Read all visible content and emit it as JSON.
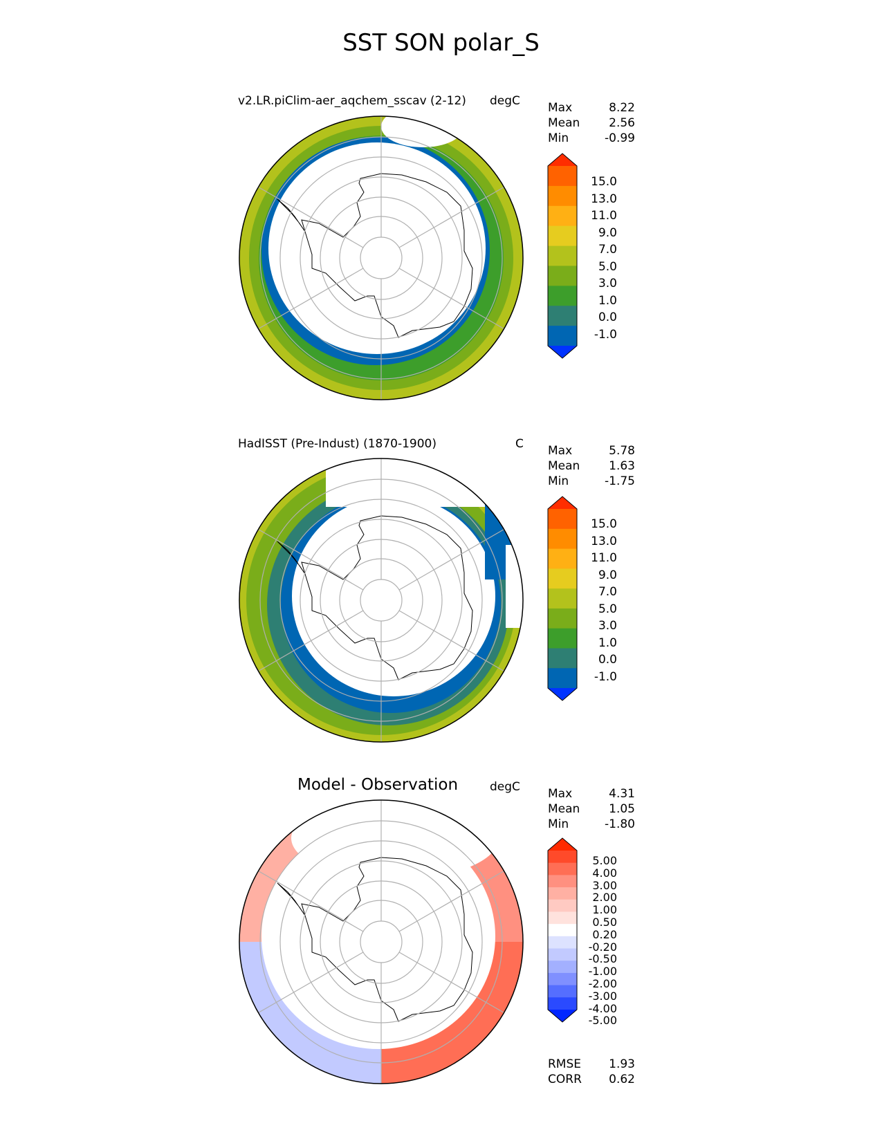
{
  "title": "SST SON polar_S",
  "panels": [
    {
      "id": "model",
      "title": "v2.LR.piClim-aer_aqchem_sscav (2-12)",
      "units": "degC",
      "stats": [
        {
          "label": "Max",
          "value": "8.22"
        },
        {
          "label": "Mean",
          "value": "2.56"
        },
        {
          "label": "Min",
          "value": "-0.99"
        }
      ],
      "colorbar": {
        "labels": [
          "15.0",
          "13.0",
          "11.0",
          "9.0",
          "7.0",
          "5.0",
          "3.0",
          "1.0",
          "0.0",
          "-1.0"
        ],
        "colors": [
          "#ff2d00",
          "#ff6200",
          "#ff8c00",
          "#ffb014",
          "#e6cc1f",
          "#b3c21c",
          "#7aad1a",
          "#3d9e2b",
          "#2e7f73",
          "#0066b3",
          "#0033ff"
        ]
      }
    },
    {
      "id": "obs",
      "title": "HadISST (Pre-Indust) (1870-1900)",
      "units": "C",
      "stats": [
        {
          "label": "Max",
          "value": "5.78"
        },
        {
          "label": "Mean",
          "value": "1.63"
        },
        {
          "label": "Min",
          "value": "-1.75"
        }
      ],
      "colorbar": {
        "labels": [
          "15.0",
          "13.0",
          "11.0",
          "9.0",
          "7.0",
          "5.0",
          "3.0",
          "1.0",
          "0.0",
          "-1.0"
        ],
        "colors": [
          "#ff2d00",
          "#ff6200",
          "#ff8c00",
          "#ffb014",
          "#e6cc1f",
          "#b3c21c",
          "#7aad1a",
          "#3d9e2b",
          "#2e7f73",
          "#0066b3",
          "#0033ff"
        ]
      }
    },
    {
      "id": "diff",
      "title": "Model - Observation",
      "units": "degC",
      "stats": [
        {
          "label": "Max",
          "value": "4.31"
        },
        {
          "label": "Mean",
          "value": "1.05"
        },
        {
          "label": "Min",
          "value": "-1.80"
        }
      ],
      "colorbar": {
        "labels": [
          "5.00",
          "4.00",
          "3.00",
          "2.00",
          "1.00",
          "0.50",
          "0.20",
          "-0.20",
          "-0.50",
          "-1.00",
          "-2.00",
          "-3.00",
          "-4.00",
          "-5.00"
        ],
        "colors": [
          "#ff2a00",
          "#ff4a2a",
          "#ff6e55",
          "#ff9080",
          "#ffb0a3",
          "#ffcac2",
          "#ffe2dd",
          "#ffffff",
          "#dde2ff",
          "#c2caff",
          "#a3b0ff",
          "#8090ff",
          "#556eff",
          "#2a4aff",
          "#0026ff"
        ]
      },
      "metrics": [
        {
          "label": "RMSE",
          "value": "1.93"
        },
        {
          "label": "CORR",
          "value": "0.62"
        }
      ]
    }
  ]
}
